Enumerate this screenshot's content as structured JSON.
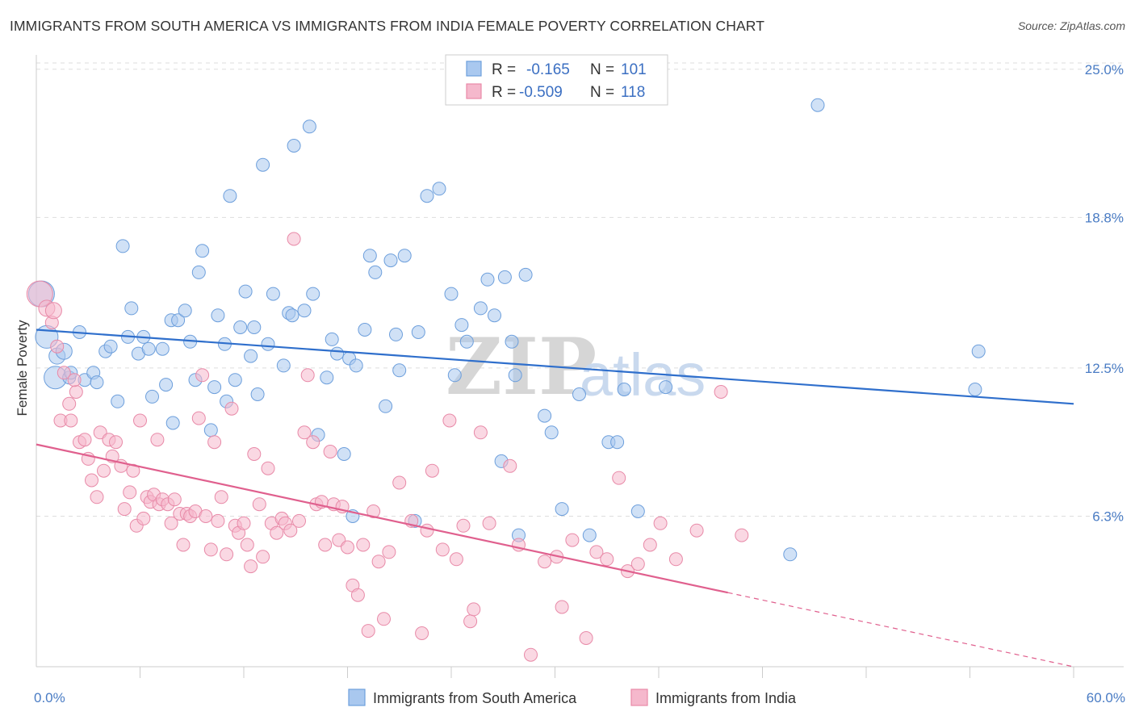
{
  "title": "IMMIGRANTS FROM SOUTH AMERICA VS IMMIGRANTS FROM INDIA FEMALE POVERTY CORRELATION CHART",
  "source": "Source: ZipAtlas.com",
  "watermark": {
    "zip": "ZIP",
    "atlas": "atlas"
  },
  "legend": {
    "r_label": "R =",
    "n_label": "N =",
    "series": [
      {
        "r": "-0.165",
        "n": "101"
      },
      {
        "r": "-0.509",
        "n": "118"
      }
    ]
  },
  "colors": {
    "blue_fill": "#a9c8ef",
    "blue_stroke": "#6d9fdc",
    "blue_line": "#2f6fcc",
    "pink_fill": "#f5b8cc",
    "pink_stroke": "#e88aa8",
    "pink_line": "#e0608e",
    "grid": "#dddddd",
    "tick_text": "#4a7cc4"
  },
  "chart_data": {
    "type": "scatter",
    "ylabel": "Female Poverty",
    "xlim": [
      0,
      60
    ],
    "ylim": [
      0,
      25.6
    ],
    "x_ticks": [
      {
        "value": 0,
        "label": "0.0%"
      },
      {
        "value": 60,
        "label": "60.0%"
      }
    ],
    "y_ticks": [
      {
        "value": 6.3,
        "label": "6.3%"
      },
      {
        "value": 12.5,
        "label": "12.5%"
      },
      {
        "value": 18.8,
        "label": "18.8%"
      },
      {
        "value": 25.0,
        "label": "25.0%"
      }
    ],
    "grid": "horizontal dashed",
    "legend_position": "top-center",
    "series": [
      {
        "name": "Immigrants from South America",
        "color": "blue",
        "trend": {
          "x0": 0,
          "y0": 14.1,
          "x1": 60,
          "y1": 11.0
        },
        "points": [
          [
            0.3,
            15.6,
            16
          ],
          [
            0.6,
            13.8,
            14
          ],
          [
            1.1,
            12.1,
            14
          ],
          [
            1.2,
            13.0,
            10
          ],
          [
            1.6,
            13.2,
            10
          ],
          [
            1.9,
            12.1,
            8
          ],
          [
            2.0,
            12.3,
            8
          ],
          [
            2.5,
            14.0,
            8
          ],
          [
            2.8,
            12.0,
            8
          ],
          [
            3.3,
            12.3,
            8
          ],
          [
            3.5,
            11.9,
            8
          ],
          [
            4.0,
            13.2,
            8
          ],
          [
            4.3,
            13.4,
            8
          ],
          [
            4.7,
            11.1,
            8
          ],
          [
            5.0,
            17.6,
            8
          ],
          [
            5.3,
            13.8,
            8
          ],
          [
            5.5,
            15.0,
            8
          ],
          [
            5.9,
            13.1,
            8
          ],
          [
            6.2,
            13.8,
            8
          ],
          [
            6.5,
            13.3,
            8
          ],
          [
            6.7,
            11.3,
            8
          ],
          [
            7.3,
            13.3,
            8
          ],
          [
            7.5,
            11.8,
            8
          ],
          [
            7.8,
            14.5,
            8
          ],
          [
            7.9,
            10.2,
            8
          ],
          [
            8.2,
            14.5,
            8
          ],
          [
            8.6,
            14.9,
            8
          ],
          [
            8.9,
            13.6,
            8
          ],
          [
            9.2,
            12.0,
            8
          ],
          [
            9.4,
            16.5,
            8
          ],
          [
            9.6,
            17.4,
            8
          ],
          [
            10.1,
            9.9,
            8
          ],
          [
            10.3,
            11.7,
            8
          ],
          [
            10.5,
            14.7,
            8
          ],
          [
            10.9,
            13.5,
            8
          ],
          [
            11.2,
            19.7,
            8
          ],
          [
            11.5,
            12.0,
            8
          ],
          [
            11.8,
            14.2,
            8
          ],
          [
            12.1,
            15.7,
            8
          ],
          [
            12.4,
            13.0,
            8
          ],
          [
            12.6,
            14.2,
            8
          ],
          [
            12.8,
            11.4,
            8
          ],
          [
            13.1,
            21.0,
            8
          ],
          [
            13.4,
            13.5,
            8
          ],
          [
            13.7,
            15.6,
            8
          ],
          [
            14.3,
            12.6,
            8
          ],
          [
            14.6,
            14.8,
            8
          ],
          [
            14.8,
            14.7,
            8
          ],
          [
            14.9,
            21.8,
            8
          ],
          [
            15.5,
            14.9,
            8
          ],
          [
            15.8,
            22.6,
            8
          ],
          [
            16.0,
            15.6,
            8
          ],
          [
            16.3,
            9.7,
            8
          ],
          [
            16.8,
            12.1,
            8
          ],
          [
            17.1,
            13.7,
            8
          ],
          [
            17.4,
            13.1,
            8
          ],
          [
            17.8,
            8.9,
            8
          ],
          [
            18.1,
            12.9,
            8
          ],
          [
            18.3,
            6.3,
            8
          ],
          [
            18.5,
            12.6,
            8
          ],
          [
            19.0,
            14.1,
            8
          ],
          [
            19.3,
            17.2,
            8
          ],
          [
            19.6,
            16.5,
            8
          ],
          [
            20.2,
            10.9,
            8
          ],
          [
            20.5,
            17.0,
            8
          ],
          [
            20.8,
            13.9,
            8
          ],
          [
            21.0,
            12.4,
            8
          ],
          [
            21.3,
            17.2,
            8
          ],
          [
            21.9,
            6.1,
            8
          ],
          [
            22.1,
            14.0,
            8
          ],
          [
            22.6,
            19.7,
            8
          ],
          [
            23.3,
            20.0,
            8
          ],
          [
            24.0,
            15.6,
            8
          ],
          [
            24.2,
            12.2,
            8
          ],
          [
            24.6,
            14.3,
            8
          ],
          [
            24.9,
            13.6,
            8
          ],
          [
            25.7,
            15.0,
            8
          ],
          [
            26.1,
            16.2,
            8
          ],
          [
            26.5,
            14.7,
            8
          ],
          [
            26.9,
            8.6,
            8
          ],
          [
            27.1,
            16.3,
            8
          ],
          [
            27.5,
            13.6,
            8
          ],
          [
            27.7,
            12.2,
            8
          ],
          [
            27.9,
            5.5,
            8
          ],
          [
            28.3,
            16.4,
            8
          ],
          [
            29.4,
            10.5,
            8
          ],
          [
            29.8,
            9.8,
            8
          ],
          [
            30.4,
            6.6,
            8
          ],
          [
            31.4,
            11.4,
            8
          ],
          [
            32.0,
            5.5,
            8
          ],
          [
            33.1,
            9.4,
            8
          ],
          [
            33.6,
            9.4,
            8
          ],
          [
            34.0,
            11.6,
            8
          ],
          [
            34.8,
            6.5,
            8
          ],
          [
            36.4,
            11.7,
            8
          ],
          [
            45.2,
            23.5,
            8
          ],
          [
            54.3,
            11.6,
            8
          ],
          [
            54.5,
            13.2,
            8
          ],
          [
            43.6,
            4.7,
            8
          ],
          [
            11.0,
            11.1,
            8
          ]
        ]
      },
      {
        "name": "Immigrants from India",
        "color": "pink",
        "trend": {
          "x0": 0,
          "y0": 9.3,
          "x1": 40,
          "y1": 3.1
        },
        "trend_dashed": {
          "x0": 40,
          "y0": 3.1,
          "x1": 60,
          "y1": 0
        },
        "points": [
          [
            0.2,
            15.6,
            16
          ],
          [
            0.6,
            15.0,
            10
          ],
          [
            0.9,
            14.4,
            8
          ],
          [
            1.2,
            13.4,
            8
          ],
          [
            1.4,
            10.3,
            8
          ],
          [
            1.6,
            12.3,
            8
          ],
          [
            1.9,
            11.0,
            8
          ],
          [
            2.0,
            10.3,
            8
          ],
          [
            2.3,
            11.5,
            8
          ],
          [
            2.5,
            9.4,
            8
          ],
          [
            2.8,
            9.5,
            8
          ],
          [
            3.0,
            8.7,
            8
          ],
          [
            3.2,
            7.8,
            8
          ],
          [
            3.5,
            7.1,
            8
          ],
          [
            3.7,
            9.8,
            8
          ],
          [
            3.9,
            8.2,
            8
          ],
          [
            4.2,
            9.5,
            8
          ],
          [
            4.4,
            8.8,
            8
          ],
          [
            4.6,
            9.4,
            8
          ],
          [
            4.9,
            8.4,
            8
          ],
          [
            5.1,
            6.6,
            8
          ],
          [
            5.4,
            7.3,
            8
          ],
          [
            5.6,
            8.2,
            8
          ],
          [
            5.8,
            5.9,
            8
          ],
          [
            6.0,
            10.3,
            8
          ],
          [
            6.2,
            6.2,
            8
          ],
          [
            6.4,
            7.1,
            8
          ],
          [
            6.6,
            6.9,
            8
          ],
          [
            6.8,
            7.2,
            8
          ],
          [
            7.1,
            6.8,
            8
          ],
          [
            7.3,
            7.0,
            8
          ],
          [
            7.6,
            6.8,
            8
          ],
          [
            7.8,
            6.0,
            8
          ],
          [
            8.0,
            7.0,
            8
          ],
          [
            8.3,
            6.4,
            8
          ],
          [
            8.5,
            5.1,
            8
          ],
          [
            8.7,
            6.4,
            8
          ],
          [
            8.9,
            6.3,
            8
          ],
          [
            9.2,
            6.5,
            8
          ],
          [
            9.4,
            10.4,
            8
          ],
          [
            9.6,
            12.2,
            8
          ],
          [
            9.8,
            6.3,
            8
          ],
          [
            10.1,
            4.9,
            8
          ],
          [
            10.3,
            9.4,
            8
          ],
          [
            10.5,
            6.1,
            8
          ],
          [
            10.7,
            7.1,
            8
          ],
          [
            11.0,
            4.7,
            8
          ],
          [
            11.3,
            10.8,
            8
          ],
          [
            11.5,
            5.9,
            8
          ],
          [
            11.7,
            5.6,
            8
          ],
          [
            12.0,
            6.0,
            8
          ],
          [
            12.2,
            5.1,
            8
          ],
          [
            12.4,
            4.2,
            8
          ],
          [
            12.6,
            8.9,
            8
          ],
          [
            12.9,
            6.8,
            8
          ],
          [
            13.1,
            4.6,
            8
          ],
          [
            13.4,
            8.3,
            8
          ],
          [
            13.6,
            6.0,
            8
          ],
          [
            13.9,
            5.6,
            8
          ],
          [
            14.2,
            6.2,
            8
          ],
          [
            14.4,
            6.0,
            8
          ],
          [
            14.7,
            5.7,
            8
          ],
          [
            14.9,
            17.9,
            8
          ],
          [
            15.2,
            6.1,
            8
          ],
          [
            15.5,
            9.8,
            8
          ],
          [
            15.7,
            12.2,
            8
          ],
          [
            16.0,
            9.4,
            8
          ],
          [
            16.2,
            6.8,
            8
          ],
          [
            16.5,
            6.9,
            8
          ],
          [
            16.7,
            5.1,
            8
          ],
          [
            17.0,
            9.0,
            8
          ],
          [
            17.2,
            6.8,
            8
          ],
          [
            17.5,
            5.3,
            8
          ],
          [
            17.7,
            6.7,
            8
          ],
          [
            18.0,
            5.0,
            8
          ],
          [
            18.3,
            3.4,
            8
          ],
          [
            18.6,
            3.0,
            8
          ],
          [
            18.9,
            5.1,
            8
          ],
          [
            19.2,
            1.5,
            8
          ],
          [
            19.5,
            6.5,
            8
          ],
          [
            19.8,
            4.4,
            8
          ],
          [
            20.1,
            2.0,
            8
          ],
          [
            20.4,
            4.8,
            8
          ],
          [
            21.0,
            7.7,
            8
          ],
          [
            21.7,
            6.1,
            8
          ],
          [
            22.3,
            1.4,
            8
          ],
          [
            22.6,
            5.7,
            8
          ],
          [
            22.9,
            8.2,
            8
          ],
          [
            23.5,
            4.9,
            8
          ],
          [
            23.9,
            10.3,
            8
          ],
          [
            24.3,
            4.5,
            8
          ],
          [
            24.7,
            5.9,
            8
          ],
          [
            25.1,
            1.9,
            8
          ],
          [
            25.3,
            2.4,
            8
          ],
          [
            25.7,
            9.8,
            8
          ],
          [
            26.2,
            6.0,
            8
          ],
          [
            27.4,
            8.4,
            8
          ],
          [
            27.9,
            5.1,
            8
          ],
          [
            28.6,
            0.5,
            8
          ],
          [
            29.4,
            4.4,
            8
          ],
          [
            30.1,
            4.6,
            8
          ],
          [
            30.4,
            2.5,
            8
          ],
          [
            31.0,
            5.3,
            8
          ],
          [
            31.8,
            1.2,
            8
          ],
          [
            32.4,
            4.8,
            8
          ],
          [
            33.0,
            4.5,
            8
          ],
          [
            33.7,
            7.9,
            8
          ],
          [
            34.2,
            4.0,
            8
          ],
          [
            34.8,
            4.3,
            8
          ],
          [
            35.5,
            5.1,
            8
          ],
          [
            36.1,
            6.0,
            8
          ],
          [
            37.0,
            4.5,
            8
          ],
          [
            38.2,
            5.7,
            8
          ],
          [
            39.6,
            11.5,
            8
          ],
          [
            40.8,
            5.5,
            8
          ],
          [
            7.0,
            9.5,
            8
          ],
          [
            2.2,
            12.0,
            8
          ],
          [
            1.0,
            14.9,
            10
          ]
        ]
      }
    ]
  }
}
